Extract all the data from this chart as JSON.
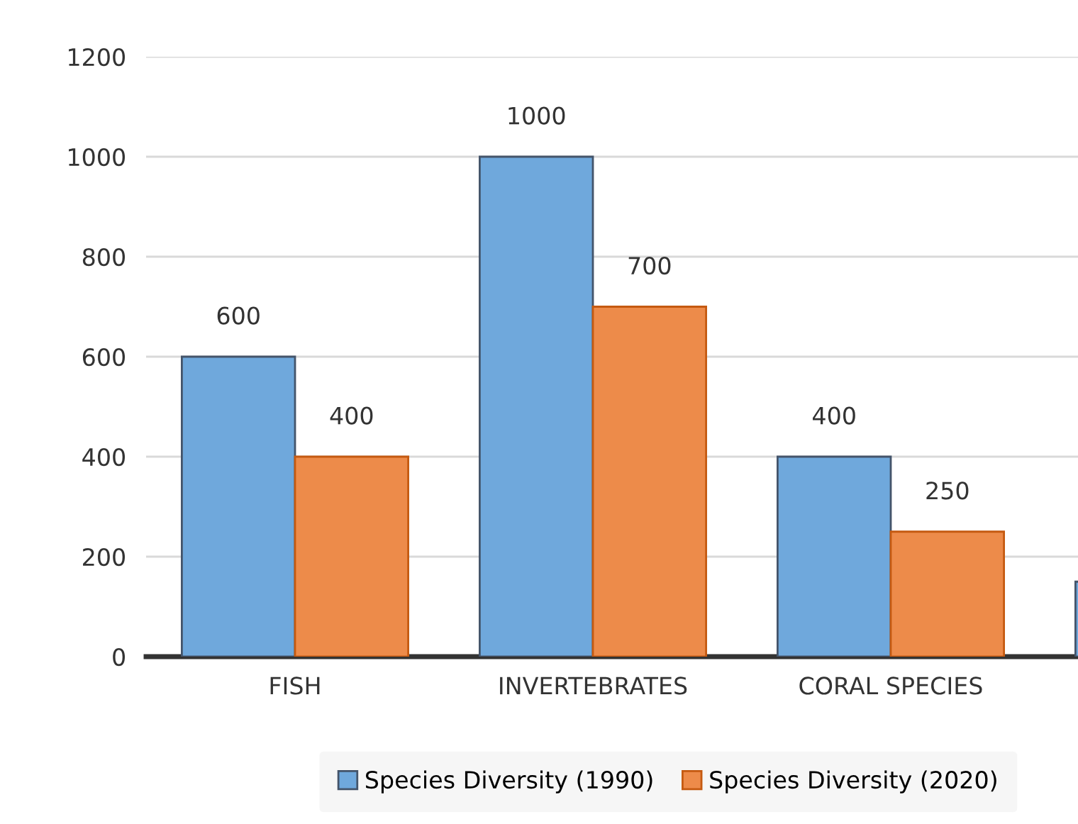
{
  "chart_data": {
    "type": "bar",
    "categories": [
      "FISH",
      "INVERTEBRATES",
      "CORAL SPECIES",
      null
    ],
    "series": [
      {
        "name": "Species Diversity (1990)",
        "color": "#6fa8dc",
        "values": [
          600,
          1000,
          400,
          150
        ],
        "value_labels": [
          "600",
          "1000",
          "400",
          null
        ]
      },
      {
        "name": "Species Diversity (2020)",
        "color": "#ed8b4a",
        "values": [
          400,
          700,
          250,
          null
        ],
        "value_labels": [
          "400",
          "700",
          "250",
          null
        ]
      }
    ],
    "ylim": [
      0,
      1200
    ],
    "yticks": [
      0,
      200,
      400,
      600,
      800,
      1000,
      1200
    ],
    "grid": "y",
    "legend": "bottom"
  }
}
